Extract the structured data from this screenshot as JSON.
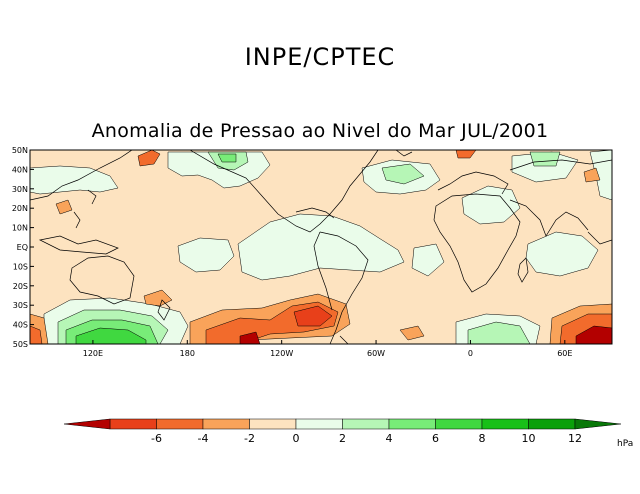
{
  "header": {
    "org": "INPE/CPTEC",
    "title": "Anomalia de Pressao ao Nivel do Mar JUL/2001"
  },
  "map": {
    "lat_labels": [
      "50N",
      "40N",
      "30N",
      "20N",
      "10N",
      "EQ",
      "10S",
      "20S",
      "30S",
      "40S",
      "50S"
    ],
    "lon_labels": [
      "120E",
      "180",
      "120W",
      "60W",
      "0",
      "60E"
    ],
    "lon_values": [
      120,
      180,
      240,
      300,
      360,
      420
    ],
    "lat_range": [
      -50,
      50
    ],
    "lon_range": [
      80,
      450
    ]
  },
  "colorbar": {
    "unit": "hPa",
    "tick_labels": [
      "-6",
      "-4",
      "-2",
      "0",
      "2",
      "4",
      "6",
      "8",
      "10",
      "12"
    ],
    "colors": {
      "lt_neg6": "#b30000",
      "neg6_neg4": "#e8401a",
      "neg4_neg3": "#f26b2c",
      "neg3_neg2": "#f9a35a",
      "neg2_0": "#fde3c0",
      "zero_2": "#eafcea",
      "two_4": "#b6f6b6",
      "four_6": "#78ec78",
      "six_8": "#40d840",
      "eight_10": "#18c018",
      "ten_12": "#0aa00a",
      "gt_12": "#087808"
    }
  }
}
